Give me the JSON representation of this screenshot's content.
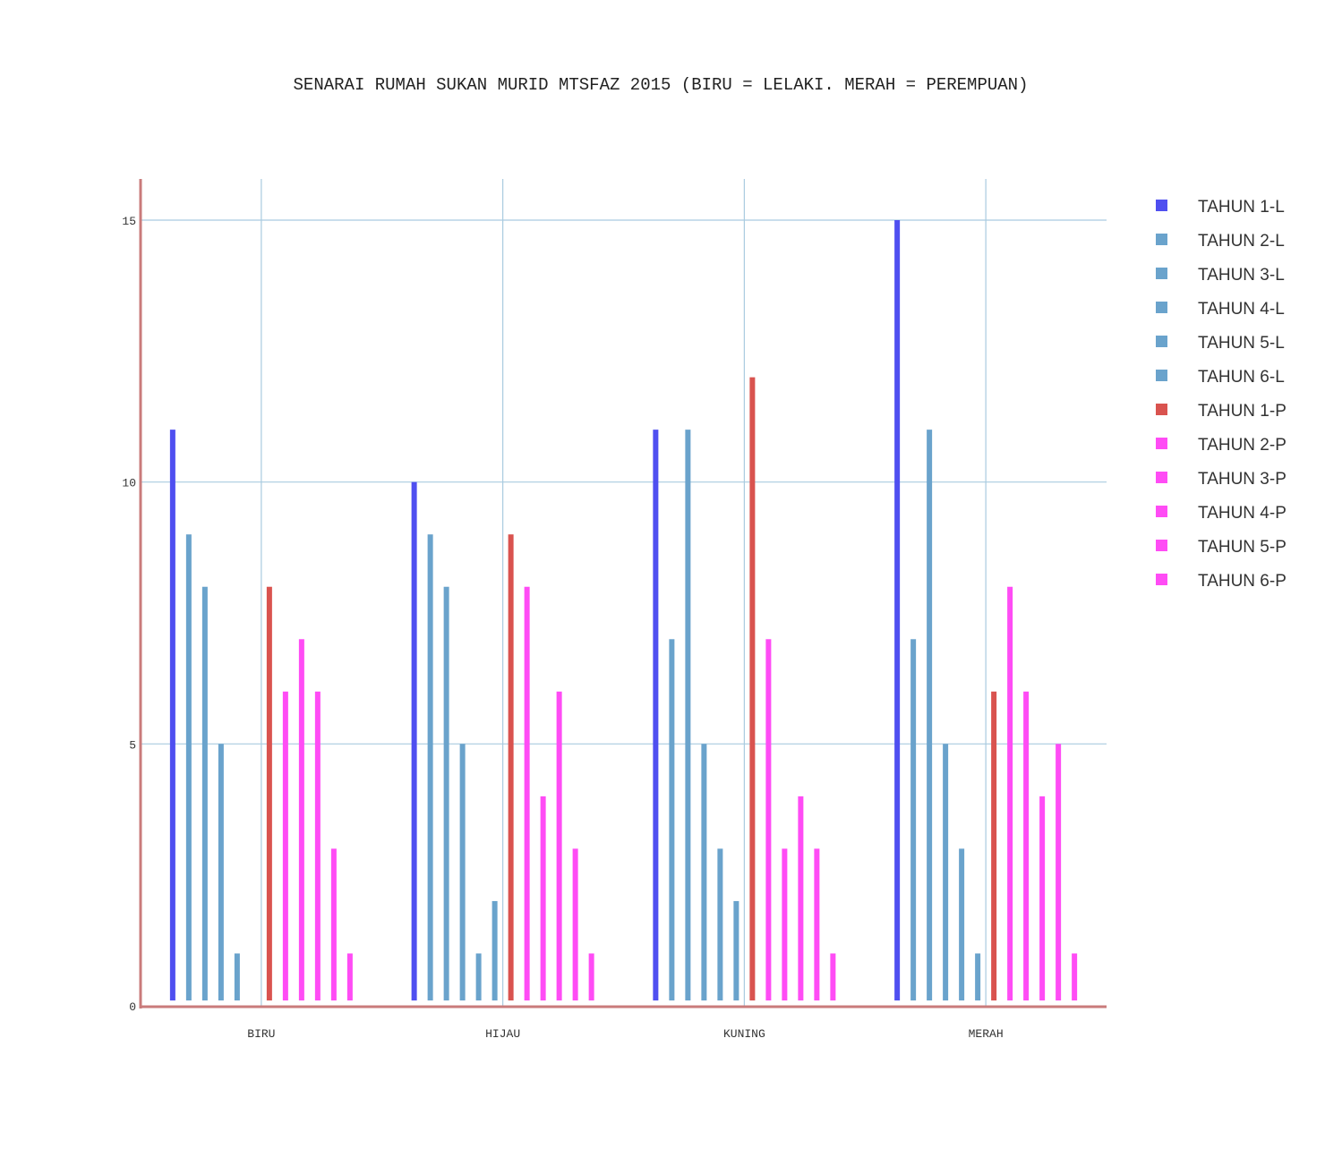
{
  "chart_data": {
    "type": "bar",
    "title": "SENARAI RUMAH SUKAN MURID MTSFAZ 2015 (BIRU = LELAKI. MERAH = PEREMPUAN)",
    "xlabel": "",
    "ylabel": "",
    "categories": [
      "BIRU",
      "HIJAU",
      "KUNING",
      "MERAH"
    ],
    "ylim": [
      0,
      16
    ],
    "yticks": [
      0,
      5,
      10,
      15
    ],
    "grid": true,
    "legend_position": "right",
    "series": [
      {
        "name": "TAHUN 1-L",
        "color": "#4f4ff0",
        "values": [
          11,
          10,
          11,
          15
        ]
      },
      {
        "name": "TAHUN 2-L",
        "color": "#6aa3cc",
        "values": [
          9,
          9,
          7,
          7
        ]
      },
      {
        "name": "TAHUN 3-L",
        "color": "#6aa3cc",
        "values": [
          8,
          8,
          11,
          11
        ]
      },
      {
        "name": "TAHUN 4-L",
        "color": "#6aa3cc",
        "values": [
          5,
          5,
          5,
          5
        ]
      },
      {
        "name": "TAHUN 5-L",
        "color": "#6aa3cc",
        "values": [
          1,
          1,
          3,
          3
        ]
      },
      {
        "name": "TAHUN 6-L",
        "color": "#6aa3cc",
        "values": [
          0,
          2,
          2,
          1
        ]
      },
      {
        "name": "TAHUN 1-P",
        "color": "#d9534f",
        "values": [
          8,
          9,
          12,
          6
        ]
      },
      {
        "name": "TAHUN 2-P",
        "color": "#ff4cf5",
        "values": [
          6,
          8,
          7,
          8
        ]
      },
      {
        "name": "TAHUN 3-P",
        "color": "#ff4cf5",
        "values": [
          7,
          4,
          3,
          6
        ]
      },
      {
        "name": "TAHUN 4-P",
        "color": "#ff4cf5",
        "values": [
          6,
          6,
          4,
          4
        ]
      },
      {
        "name": "TAHUN 5-P",
        "color": "#ff4cf5",
        "values": [
          3,
          3,
          3,
          5
        ]
      },
      {
        "name": "TAHUN 6-P",
        "color": "#ff4cf5",
        "values": [
          1,
          1,
          1,
          1
        ]
      }
    ]
  }
}
